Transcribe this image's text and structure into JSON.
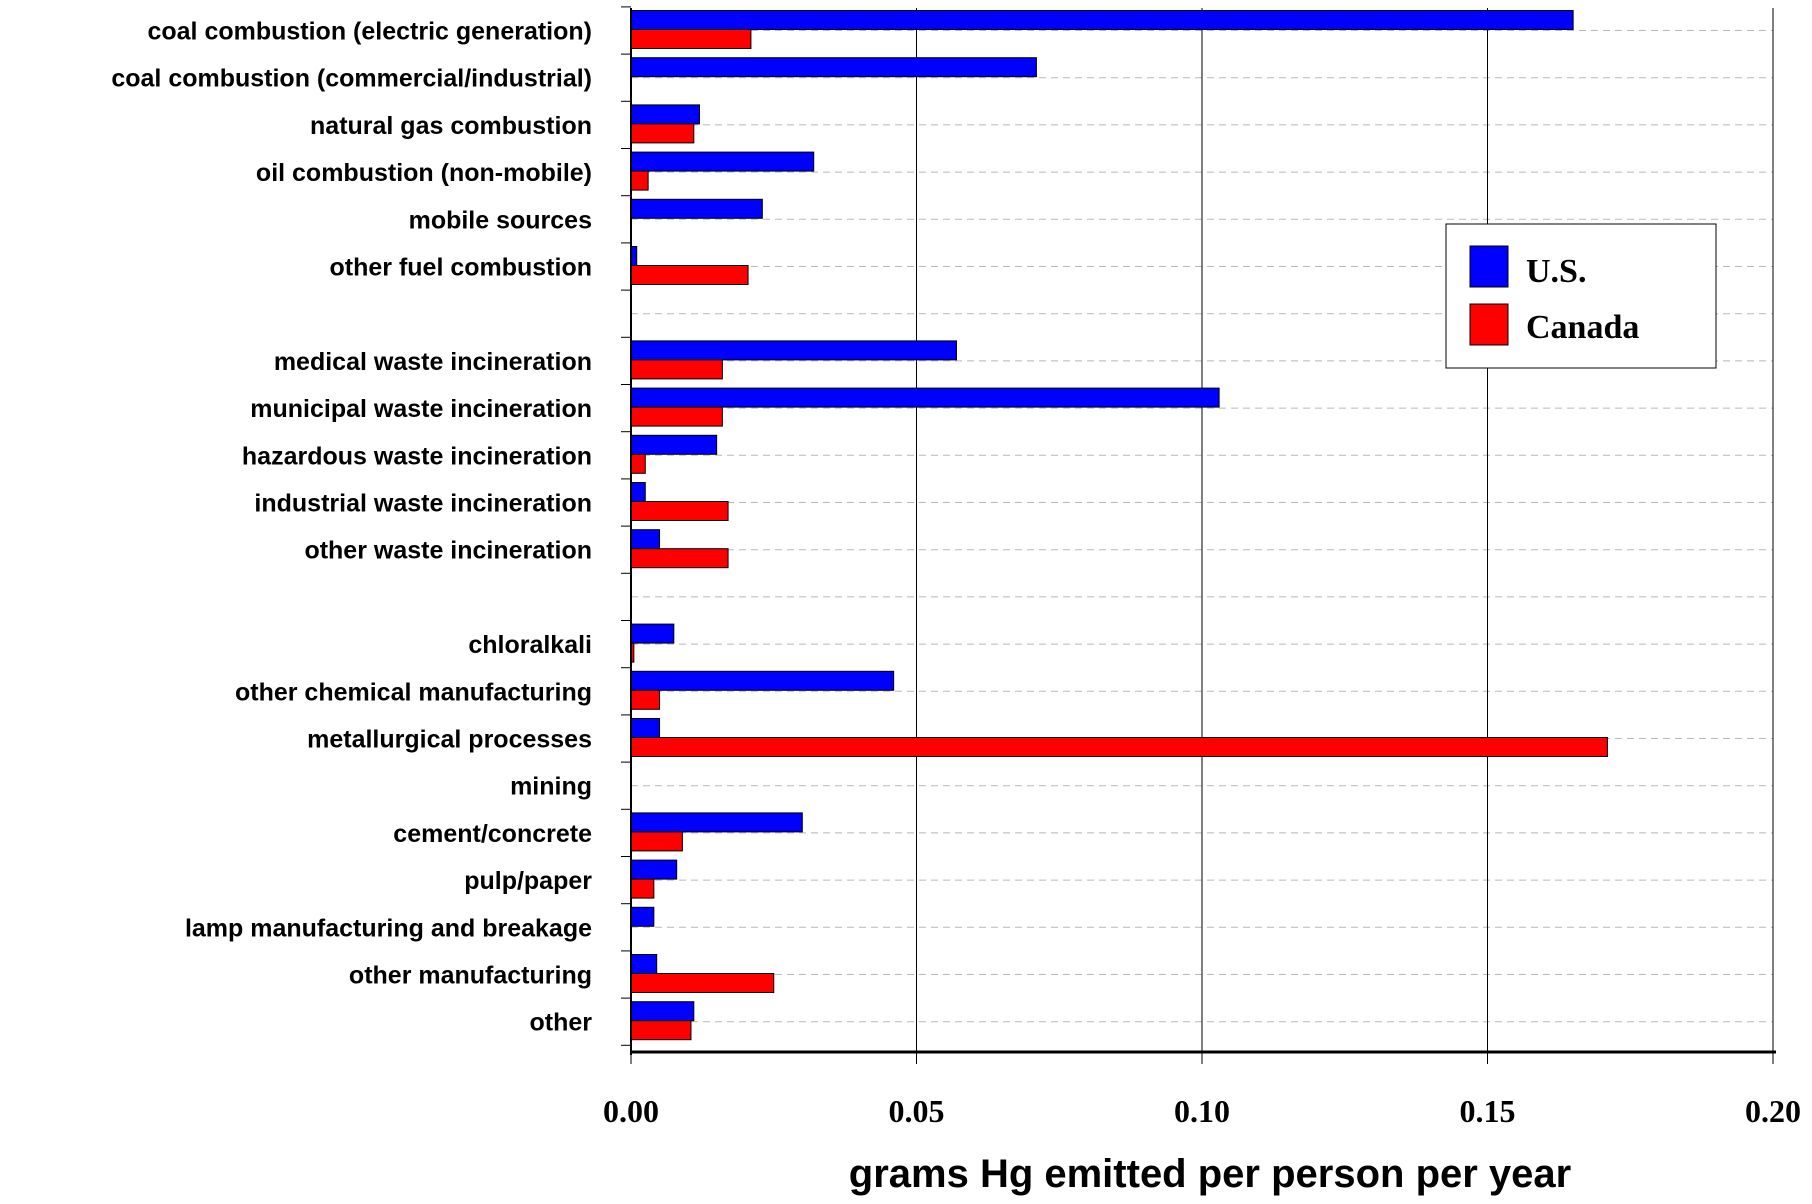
{
  "chart_data": {
    "type": "bar",
    "orientation": "horizontal",
    "xlabel": "grams Hg emitted per person per year",
    "ylabel": "",
    "xlim": [
      0,
      0.2
    ],
    "xticks": [
      "0.00",
      "0.05",
      "0.10",
      "0.15",
      "0.20"
    ],
    "grid": "vertical solid at ticks, horizontal dashed per category",
    "legend_position": "right, upper-middle",
    "colors": {
      "U.S.": "#0000ff",
      "Canada": "#ff0000"
    },
    "categories": [
      "coal combustion (electric generation)",
      "coal combustion (commercial/industrial)",
      "natural gas combustion",
      "oil combustion (non-mobile)",
      "mobile sources",
      "other fuel combustion",
      "",
      "medical waste incineration",
      "municipal waste incineration",
      "hazardous waste incineration",
      "industrial waste incineration",
      "other waste incineration",
      "",
      "chloralkali",
      "other chemical manufacturing",
      "metallurgical processes",
      "mining",
      "cement/concrete",
      "pulp/paper",
      "lamp manufacturing and breakage",
      "other manufacturing",
      "other"
    ],
    "series": [
      {
        "name": "U.S.",
        "values": [
          0.165,
          0.071,
          0.012,
          0.032,
          0.023,
          0.001,
          null,
          0.057,
          0.103,
          0.015,
          0.0025,
          0.005,
          null,
          0.0075,
          0.046,
          0.005,
          0,
          0.03,
          0.008,
          0.004,
          0.0045,
          0.011
        ]
      },
      {
        "name": "Canada",
        "values": [
          0.021,
          0,
          0.011,
          0.003,
          0,
          0.0205,
          null,
          0.016,
          0.016,
          0.0025,
          0.017,
          0.017,
          null,
          0.0005,
          0.005,
          0.171,
          0,
          0.009,
          0.004,
          0,
          0.025,
          0.0105
        ]
      }
    ]
  }
}
